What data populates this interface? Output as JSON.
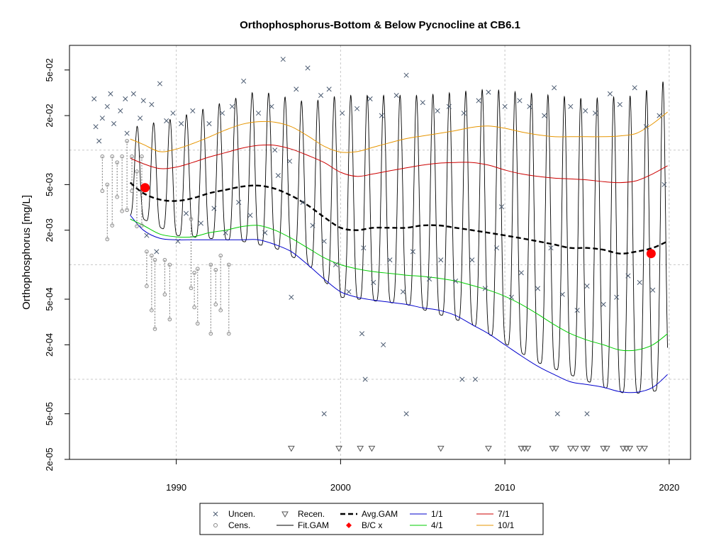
{
  "chart_data": {
    "type": "scatter",
    "title": "Orthophosphorus-Bottom & Below Pycnocline at CB6.1",
    "xlabel": "",
    "ylabel": "Orthophosphorus [mg/L]",
    "y_scale": "log",
    "xlim": [
      1983.5,
      2021.3
    ],
    "ylim": [
      2e-05,
      0.082
    ],
    "x_ticks": [
      {
        "value": 1990,
        "label": "1990"
      },
      {
        "value": 2000,
        "label": "2000"
      },
      {
        "value": 2010,
        "label": "2010"
      },
      {
        "value": 2020,
        "label": "2020"
      }
    ],
    "y_ticks": [
      {
        "value": 2e-05,
        "label": "2e-05"
      },
      {
        "value": 5e-05,
        "label": "5e-05"
      },
      {
        "value": 0.0002,
        "label": "2e-04"
      },
      {
        "value": 0.0005,
        "label": "5e-04"
      },
      {
        "value": 0.002,
        "label": "2e-03"
      },
      {
        "value": 0.005,
        "label": "5e-03"
      },
      {
        "value": 0.02,
        "label": "2e-02"
      },
      {
        "value": 0.05,
        "label": "5e-02"
      }
    ],
    "grid_x": [
      1990,
      2000,
      2010,
      2020
    ],
    "grid_y": [
      0.0001,
      0.001,
      0.01
    ],
    "series": [
      {
        "name": "1/1",
        "color": "#0000cc",
        "x": [
          1987.2,
          1988,
          1989,
          1990,
          1991,
          1992,
          1993,
          1994,
          1995,
          1996,
          1997,
          1998,
          1999,
          2000,
          2001,
          2002,
          2003,
          2004,
          2005,
          2006,
          2007,
          2008,
          2009,
          2010,
          2011,
          2012,
          2013,
          2014,
          2015,
          2016,
          2017,
          2018,
          2019,
          2019.9
        ],
        "y": [
          0.0027,
          0.002,
          0.0017,
          0.00165,
          0.00165,
          0.00165,
          0.00165,
          0.00165,
          0.00165,
          0.0015,
          0.0013,
          0.001,
          0.00075,
          0.00058,
          0.00052,
          0.00049,
          0.00047,
          0.00045,
          0.00042,
          0.0004,
          0.00036,
          0.0003,
          0.00025,
          0.0002,
          0.00016,
          0.00013,
          0.00011,
          9.5e-05,
          9e-05,
          8.5e-05,
          7.8e-05,
          7.7e-05,
          8.5e-05,
          0.00011
        ]
      },
      {
        "name": "4/1",
        "color": "#00cc00",
        "x": [
          1987.2,
          1988,
          1989,
          1990,
          1991,
          1992,
          1993,
          1994,
          1995,
          1996,
          1997,
          1998,
          1999,
          2000,
          2001,
          2002,
          2003,
          2004,
          2005,
          2006,
          2007,
          2008,
          2009,
          2010,
          2011,
          2012,
          2013,
          2014,
          2015,
          2016,
          2017,
          2018,
          2019,
          2019.9
        ],
        "y": [
          0.0025,
          0.0022,
          0.00185,
          0.00175,
          0.00175,
          0.0019,
          0.002,
          0.00215,
          0.0022,
          0.002,
          0.0017,
          0.0014,
          0.00115,
          0.001,
          0.00092,
          0.00087,
          0.00084,
          0.00081,
          0.00079,
          0.00076,
          0.00072,
          0.00066,
          0.0006,
          0.00053,
          0.00045,
          0.00037,
          0.0003,
          0.00025,
          0.00022,
          0.0002,
          0.00018,
          0.00018,
          0.0002,
          0.00025
        ]
      },
      {
        "name": "7/1",
        "color": "#cc0000",
        "x": [
          1987.2,
          1988,
          1989,
          1990,
          1991,
          1992,
          1993,
          1994,
          1995,
          1996,
          1997,
          1998,
          1999,
          2000,
          2001,
          2002,
          2003,
          2004,
          2005,
          2006,
          2007,
          2008,
          2009,
          2010,
          2011,
          2012,
          2013,
          2014,
          2015,
          2016,
          2017,
          2018,
          2019,
          2019.9
        ],
        "y": [
          0.0085,
          0.0076,
          0.0069,
          0.0071,
          0.0078,
          0.0087,
          0.0095,
          0.0104,
          0.011,
          0.011,
          0.0102,
          0.009,
          0.0078,
          0.0064,
          0.0059,
          0.0062,
          0.0066,
          0.007,
          0.0074,
          0.0077,
          0.0078,
          0.0078,
          0.0074,
          0.0067,
          0.0062,
          0.0059,
          0.0057,
          0.0056,
          0.0055,
          0.0053,
          0.0052,
          0.0054,
          0.0062,
          0.0073
        ]
      },
      {
        "name": "10/1",
        "color": "#e69500",
        "x": [
          1987.2,
          1988,
          1989,
          1990,
          1991,
          1992,
          1993,
          1994,
          1995,
          1996,
          1997,
          1998,
          1999,
          2000,
          2001,
          2002,
          2003,
          2004,
          2005,
          2006,
          2007,
          2008,
          2009,
          2010,
          2011,
          2012,
          2013,
          2014,
          2015,
          2016,
          2017,
          2018,
          2019,
          2019.9
        ],
        "y": [
          0.0125,
          0.0112,
          0.0097,
          0.0102,
          0.0114,
          0.013,
          0.015,
          0.0168,
          0.0177,
          0.0175,
          0.016,
          0.0133,
          0.0108,
          0.0096,
          0.0097,
          0.0106,
          0.0116,
          0.0126,
          0.0133,
          0.014,
          0.0148,
          0.0158,
          0.0162,
          0.0155,
          0.0144,
          0.0136,
          0.0131,
          0.0131,
          0.0131,
          0.0131,
          0.0133,
          0.014,
          0.017,
          0.0215
        ]
      },
      {
        "name": "Avg.GAM",
        "color": "#000000",
        "x": [
          1987.2,
          1988,
          1989,
          1990,
          1991,
          1992,
          1993,
          1994,
          1995,
          1996,
          1997,
          1998,
          1999,
          2000,
          2001,
          2002,
          2003,
          2004,
          2005,
          2006,
          2007,
          2008,
          2009,
          2010,
          2011,
          2012,
          2013,
          2014,
          2015,
          2016,
          2017,
          2018,
          2019,
          2019.9
        ],
        "y": [
          0.0052,
          0.0042,
          0.0037,
          0.0036,
          0.0038,
          0.0042,
          0.0045,
          0.0048,
          0.0049,
          0.0046,
          0.004,
          0.0033,
          0.0026,
          0.0021,
          0.002,
          0.0021,
          0.0021,
          0.0021,
          0.0022,
          0.0022,
          0.0021,
          0.002,
          0.0019,
          0.0018,
          0.0017,
          0.0016,
          0.0015,
          0.0014,
          0.0014,
          0.00135,
          0.00125,
          0.0013,
          0.0014,
          0.0016
        ]
      },
      {
        "name": "Fit.GAM",
        "color": "#000000",
        "kind": "seasonal",
        "start_year": 1987.2,
        "end_year": 2019.9,
        "peak": [
          [
            1987.5,
            0.016
          ],
          [
            1990,
            0.019
          ],
          [
            1995,
            0.033
          ],
          [
            1998,
            0.026
          ],
          [
            2000,
            0.03
          ],
          [
            2005,
            0.03
          ],
          [
            2009,
            0.034
          ],
          [
            2015,
            0.028
          ],
          [
            2018,
            0.03
          ],
          [
            2019.7,
            0.04
          ]
        ],
        "trough": [
          [
            1987.5,
            0.0027
          ],
          [
            1990,
            0.0018
          ],
          [
            1994,
            0.0016
          ],
          [
            1996,
            0.0014
          ],
          [
            1998,
            0.001
          ],
          [
            2000,
            0.00052
          ],
          [
            2004,
            0.00045
          ],
          [
            2008,
            0.0003
          ],
          [
            2012,
            0.00014
          ],
          [
            2016,
            8.5e-05
          ],
          [
            2017.5,
            7.4e-05
          ],
          [
            2019.5,
            8e-05
          ]
        ]
      },
      {
        "name": "B/C x",
        "color": "#ff0000",
        "x": [
          1988.1,
          2018.9
        ],
        "y": [
          0.0047,
          0.00125
        ]
      }
    ],
    "observations": {
      "uncensored": {
        "x": [
          1985.0,
          1985.1,
          1985.3,
          1985.5,
          1985.8,
          1986.0,
          1986.2,
          1986.6,
          1986.9,
          1987.0,
          1987.4,
          1987.8,
          1988.0,
          1988.2,
          1988.5,
          1988.8,
          1989.0,
          1989.4,
          1989.8,
          1990.1,
          1990.3,
          1990.6,
          1991.0,
          1991.5,
          1992.0,
          1992.3,
          1992.8,
          1993.0,
          1993.4,
          1993.8,
          1994.1,
          1994.5,
          1995.0,
          1995.4,
          1995.8,
          1996.2,
          1996.5,
          1997.0,
          1997.3,
          1997.7,
          1998.0,
          1998.3,
          1998.8,
          1999.0,
          1999.3,
          1999.7,
          2000.1,
          2000.5,
          2001.0,
          2001.4,
          2001.8,
          2002.0,
          2002.5,
          2003.0,
          2003.4,
          2003.8,
          2004.0,
          2004.4,
          2005.0,
          2005.4,
          2005.9,
          2006.1,
          2006.6,
          2007.0,
          2007.5,
          2008.0,
          2008.4,
          2008.8,
          2009.0,
          2009.5,
          2010.0,
          2010.4,
          2010.9,
          2011.0,
          2011.5,
          2012.0,
          2012.4,
          2012.8,
          2013.0,
          2013.5,
          2014.0,
          2014.4,
          2014.9,
          2015.0,
          2015.5,
          2016.0,
          2016.4,
          2016.8,
          2017.0,
          2017.5,
          2017.9,
          2018.2,
          2018.6,
          2019.0,
          2019.4,
          2019.7,
          1996.0,
          1996.9,
          2001.3,
          1999.0,
          2004.0,
          2013.2,
          2015.0,
          2002.6,
          2001.5,
          2007.4,
          2008.2,
          2009.8
        ],
        "y": [
          0.028,
          0.016,
          0.012,
          0.019,
          0.024,
          0.031,
          0.017,
          0.022,
          0.028,
          0.014,
          0.031,
          0.019,
          0.027,
          0.0018,
          0.025,
          0.0013,
          0.038,
          0.018,
          0.021,
          0.0016,
          0.017,
          0.0028,
          0.022,
          0.0023,
          0.017,
          0.0031,
          0.021,
          0.0019,
          0.024,
          0.0035,
          0.04,
          0.0027,
          0.021,
          0.0019,
          0.024,
          0.006,
          0.062,
          0.00052,
          0.034,
          0.0035,
          0.052,
          0.0022,
          0.03,
          0.0016,
          0.034,
          0.001,
          0.021,
          0.00058,
          0.023,
          0.0014,
          0.028,
          0.0007,
          0.02,
          0.0011,
          0.03,
          0.00058,
          0.045,
          0.0013,
          0.026,
          0.00075,
          0.022,
          0.0011,
          0.024,
          0.00072,
          0.021,
          0.0011,
          0.027,
          0.00062,
          0.032,
          0.0014,
          0.024,
          0.00052,
          0.027,
          0.00085,
          0.024,
          0.00062,
          0.02,
          0.0014,
          0.035,
          0.00055,
          0.024,
          0.0004,
          0.022,
          0.00065,
          0.021,
          0.00045,
          0.031,
          0.00052,
          0.025,
          0.0008,
          0.035,
          0.0007,
          0.016,
          0.0006,
          0.02,
          0.005,
          0.01,
          0.008,
          0.00025,
          5e-05,
          5e-05,
          5e-05,
          5e-05,
          0.0002,
          0.0001,
          0.0001,
          0.0001,
          0.0032
        ]
      },
      "censored": {
        "x": [
          1985.5,
          1985.8,
          1986.1,
          1986.4,
          1986.7,
          1987.0,
          1987.3,
          1987.6,
          1987.9,
          1988.2,
          1988.5,
          1988.7,
          1989.3,
          1989.6,
          1990.9,
          1991.1,
          1991.3,
          1992.1,
          1992.4,
          1992.7,
          1993.2
        ],
        "y": [
          0.0088,
          0.005,
          0.0088,
          0.0078,
          0.0088,
          0.012,
          0.0088,
          0.0065,
          0.0088,
          0.0013,
          0.0012,
          0.0011,
          0.0011,
          0.001,
          0.0025,
          0.00085,
          0.00092,
          0.001,
          0.0009,
          0.0012,
          0.001
        ]
      },
      "recensored": {
        "x": [
          1997.0,
          1999.9,
          2001.2,
          2001.9,
          2006.1,
          2009.0,
          2011.0,
          2011.2,
          2011.4,
          2012.9,
          2013.1,
          2014.0,
          2014.3,
          2014.8,
          2015.0,
          2016.0,
          2016.2,
          2017.2,
          2017.4,
          2017.6,
          2018.2,
          2018.5
        ],
        "y": [
          2.5e-05,
          2.5e-05,
          2.5e-05,
          2.5e-05,
          2.5e-05,
          2.5e-05,
          2.5e-05,
          2.5e-05,
          2.5e-05,
          2.5e-05,
          2.5e-05,
          2.5e-05,
          2.5e-05,
          2.5e-05,
          2.5e-05,
          2.5e-05,
          2.5e-05,
          2.5e-05,
          2.5e-05,
          2.5e-05,
          2.5e-05,
          2.5e-05
        ]
      }
    },
    "legend": {
      "placement": "bottom-center",
      "entries": [
        {
          "label": "Uncen.",
          "symbol": "x",
          "color": "#4a5a70"
        },
        {
          "label": "Cens.",
          "symbol": "circle",
          "color": "#888888"
        },
        {
          "label": "Recen.",
          "symbol": "triangle-down",
          "color": "#555555"
        },
        {
          "label": "Fit.GAM",
          "symbol": "line",
          "color": "#000000"
        },
        {
          "label": "Avg.GAM",
          "symbol": "dashed-line",
          "color": "#000000"
        },
        {
          "label": "B/C x",
          "symbol": "diamond",
          "color": "#ff0000"
        },
        {
          "label": "1/1",
          "symbol": "line",
          "color": "#0000cc"
        },
        {
          "label": "4/1",
          "symbol": "line",
          "color": "#00cc00"
        },
        {
          "label": "7/1",
          "symbol": "line",
          "color": "#cc0000"
        },
        {
          "label": "10/1",
          "symbol": "line",
          "color": "#e69500"
        }
      ]
    }
  }
}
